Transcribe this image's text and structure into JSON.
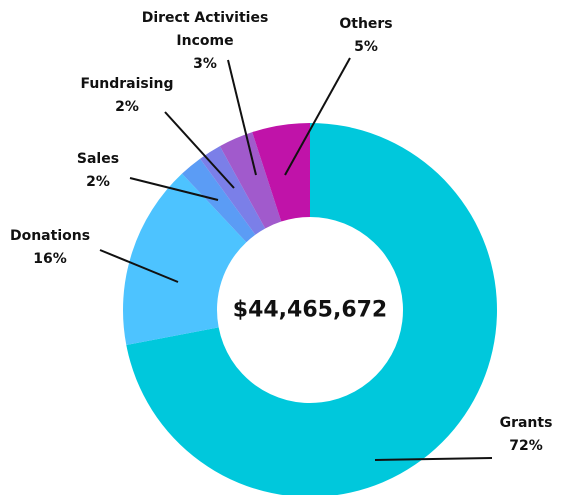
{
  "chart_data": {
    "type": "donut",
    "center_label": "$44,465,672",
    "categories": [
      "Grants",
      "Donations",
      "Sales",
      "Fundraising",
      "Direct Activities Income",
      "Others"
    ],
    "values": [
      72,
      16,
      2,
      2,
      3,
      5
    ],
    "value_labels": [
      "72%",
      "16%",
      "2%",
      "2%",
      "3%",
      "5%"
    ],
    "colors": [
      "#00c8dc",
      "#4dc3ff",
      "#5b9cf5",
      "#7b7fe8",
      "#a15acc",
      "#c013a9"
    ]
  }
}
